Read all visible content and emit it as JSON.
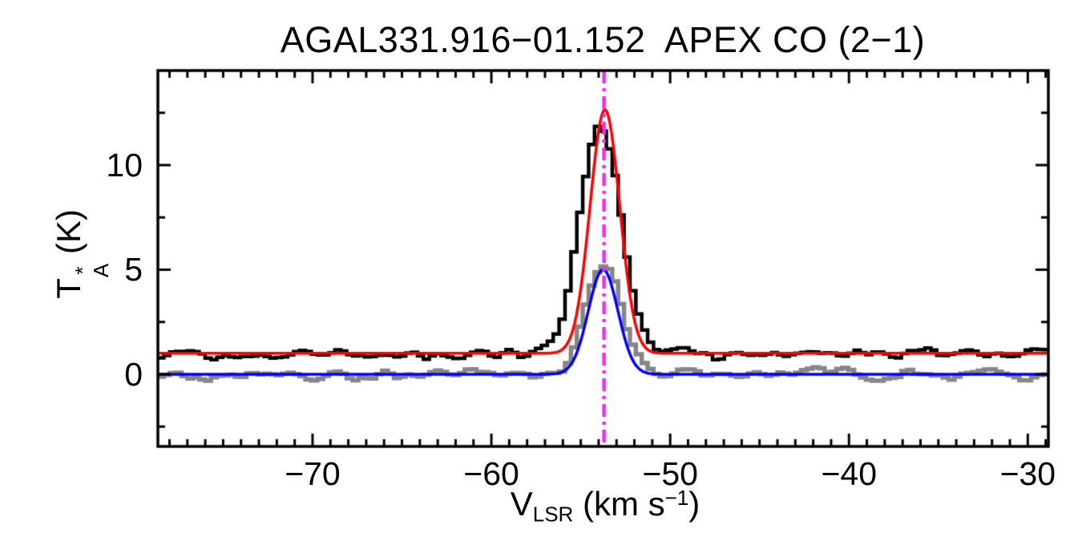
{
  "chart": {
    "title": "AGAL331.916−01.152  APEX CO (2−1)",
    "ylabel": {
      "main": "T",
      "sup": "*",
      "sub": "A",
      "unit": " (K)"
    },
    "xlabel": {
      "main": "V",
      "sub": "LSR",
      "unit_prefix": " (km s",
      "unit_sup": "−1",
      "unit_suffix": ")"
    }
  },
  "chart_data": {
    "type": "line",
    "title": "AGAL331.916-01.152  APEX CO (2-1)",
    "xlabel": "V_LSR (km s^-1)",
    "ylabel": "T_A^* (K)",
    "xlim": [
      -78.65,
      -28.85
    ],
    "ylim": [
      -3.45,
      14.52
    ],
    "grid": false,
    "legend": null,
    "background": "#ffffff",
    "axis_color": "#000000",
    "x_major_ticks": [
      -70,
      -60,
      -50,
      -40,
      -30
    ],
    "x_tick_labels": [
      "−70",
      "−60",
      "−50",
      "−40",
      "−30"
    ],
    "x_minor_interval": 1,
    "y_major_ticks": [
      0,
      5,
      10
    ],
    "y_tick_labels": [
      "0",
      "5",
      "10"
    ],
    "y_minor_interval": 2.5,
    "vline": {
      "x": -53.7,
      "color": "#ff22ff",
      "style": "dash-dot",
      "name": "vlsr-marker"
    },
    "series": [
      {
        "name": "observed-spectrum-offset",
        "type": "histogram",
        "color": "#000000",
        "line_width": 4.5,
        "baseline": 1.0,
        "amplitude": 11.3,
        "center": -53.9,
        "fwhm": 2.6,
        "noise_sigma": 0.21,
        "channel_width": 0.33,
        "seed": 12,
        "peak": 12.3
      },
      {
        "name": "observed-spectrum",
        "type": "histogram",
        "color": "#868686",
        "line_width": 5.5,
        "baseline": 0.0,
        "amplitude": 5.2,
        "center": -53.7,
        "fwhm": 2.4,
        "noise_sigma": 0.21,
        "channel_width": 0.33,
        "seed": 77,
        "peak": 5.2
      },
      {
        "name": "gaussian-fit-offset",
        "type": "gaussian",
        "color": "#ff0000",
        "line_width": 3.5,
        "baseline": 1.0,
        "amplitude": 11.65,
        "center": -53.65,
        "fwhm": 1.95,
        "peak": 12.65
      },
      {
        "name": "gaussian-fit",
        "type": "gaussian",
        "color": "#0000ff",
        "line_width": 3.5,
        "baseline": 0.0,
        "amplitude": 5.0,
        "center": -53.75,
        "fwhm": 1.95,
        "peak": 5.0
      }
    ]
  }
}
